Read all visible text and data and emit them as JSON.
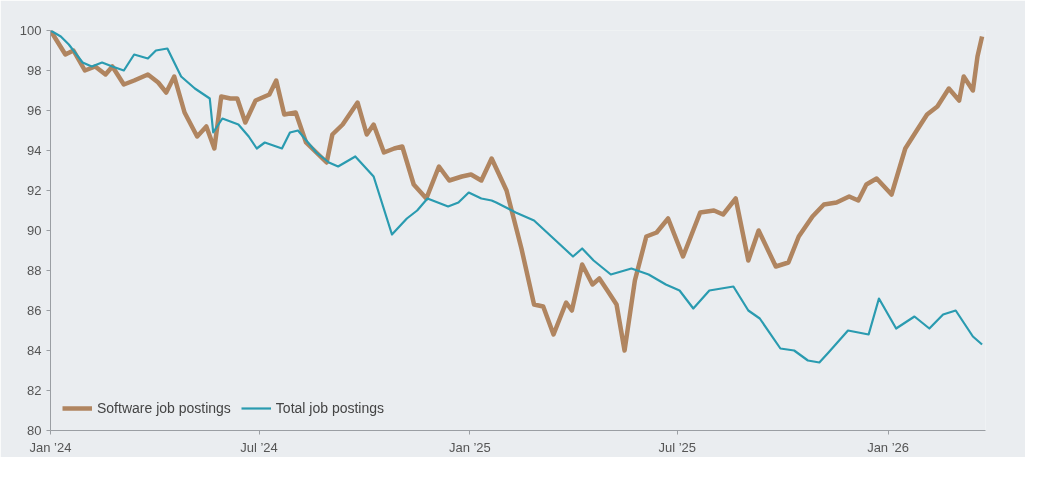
{
  "chart_data": {
    "type": "line",
    "x": [
      "2024-01-01",
      "2024-01-14",
      "2024-01-21",
      "2024-01-31",
      "2024-02-09",
      "2024-02-18",
      "2024-02-24",
      "2024-03-05",
      "2024-03-14",
      "2024-03-26",
      "2024-04-04",
      "2024-04-11",
      "2024-04-18",
      "2024-04-27",
      "2024-05-08",
      "2024-05-16",
      "2024-05-23",
      "2024-05-29",
      "2024-06-06",
      "2024-06-12",
      "2024-06-19",
      "2024-06-28",
      "2024-07-10",
      "2024-07-16",
      "2024-07-23",
      "2024-08-02",
      "2024-08-11",
      "2024-08-20",
      "2024-08-29",
      "2024-09-03",
      "2024-09-12",
      "2024-09-25",
      "2024-10-03",
      "2024-10-09",
      "2024-10-18",
      "2024-10-27",
      "2024-11-03",
      "2024-11-13",
      "2024-11-24",
      "2024-12-05",
      "2024-12-14",
      "2024-12-25",
      "2025-01-02",
      "2025-01-11",
      "2025-01-20",
      "2025-02-02",
      "2025-02-15",
      "2025-02-26",
      "2025-03-06",
      "2025-03-15",
      "2025-03-26",
      "2025-03-31",
      "2025-04-09",
      "2025-04-18",
      "2025-04-24",
      "2025-05-01",
      "2025-05-09",
      "2025-05-16",
      "2025-05-25",
      "2025-06-04",
      "2025-06-13",
      "2025-06-23",
      "2025-07-06",
      "2025-07-21",
      "2025-08-02",
      "2025-08-10",
      "2025-08-21",
      "2025-09-01",
      "2025-09-10",
      "2025-09-25",
      "2025-10-06",
      "2025-10-15",
      "2025-10-27",
      "2025-11-06",
      "2025-11-17",
      "2025-11-28",
      "2025-12-06",
      "2025-12-13",
      "2025-12-22",
      "2026-01-04",
      "2026-01-16",
      "2026-01-26",
      "2026-02-04",
      "2026-02-13",
      "2026-02-23",
      "2026-03-04",
      "2026-03-08",
      "2026-03-16",
      "2026-03-20",
      "2026-03-24"
    ],
    "series": [
      {
        "name": "Software job postings",
        "color": "#b08560",
        "values": [
          100,
          98.8,
          99.0,
          98.0,
          98.2,
          97.8,
          98.2,
          97.3,
          97.5,
          97.8,
          97.4,
          96.9,
          97.7,
          95.9,
          94.7,
          95.2,
          94.1,
          96.7,
          96.6,
          96.6,
          95.4,
          96.5,
          96.8,
          97.5,
          95.8,
          95.9,
          94.4,
          93.9,
          93.4,
          94.8,
          95.3,
          96.4,
          94.8,
          95.3,
          93.9,
          94.1,
          94.2,
          92.3,
          91.6,
          93.2,
          92.5,
          92.7,
          92.8,
          92.5,
          93.6,
          92.0,
          89.1,
          86.3,
          86.2,
          84.8,
          86.4,
          86.0,
          88.3,
          87.3,
          87.6,
          87.0,
          86.3,
          84.0,
          87.5,
          89.7,
          89.9,
          90.6,
          88.7,
          90.9,
          91.0,
          90.8,
          91.6,
          88.5,
          90.0,
          88.2,
          88.4,
          89.7,
          90.7,
          91.3,
          91.4,
          91.7,
          91.5,
          92.3,
          92.6,
          91.8,
          94.1,
          95.0,
          95.8,
          96.2,
          97.1,
          96.5,
          97.7,
          97.0,
          98.7,
          99.7
        ]
      },
      {
        "name": "Total job postings",
        "color": "#2a9bb0",
        "x": [
          "2024-01-01",
          "2024-01-10",
          "2024-01-17",
          "2024-01-29",
          "2024-02-06",
          "2024-02-15",
          "2024-02-24",
          "2024-03-05",
          "2024-03-14",
          "2024-03-26",
          "2024-04-02",
          "2024-04-12",
          "2024-04-24",
          "2024-05-06",
          "2024-05-19",
          "2024-05-22",
          "2024-05-30",
          "2024-06-13",
          "2024-06-22",
          "2024-06-29",
          "2024-07-06",
          "2024-07-21",
          "2024-07-28",
          "2024-08-04",
          "2024-08-20",
          "2024-08-31",
          "2024-09-08",
          "2024-09-23",
          "2024-10-09",
          "2024-10-25",
          "2024-11-07",
          "2024-11-16",
          "2024-11-25",
          "2024-12-13",
          "2024-12-22",
          "2024-12-31",
          "2025-01-11",
          "2025-01-20",
          "2025-01-24",
          "2025-02-10",
          "2025-02-26",
          "2025-03-15",
          "2025-04-01",
          "2025-04-09",
          "2025-04-19",
          "2025-05-04",
          "2025-05-22",
          "2025-06-06",
          "2025-06-21",
          "2025-07-03",
          "2025-07-15",
          "2025-07-29",
          "2025-08-19",
          "2025-09-01",
          "2025-09-11",
          "2025-09-29",
          "2025-10-11",
          "2025-10-23",
          "2025-11-02",
          "2025-11-10",
          "2025-11-27",
          "2025-12-15",
          "2025-12-24",
          "2026-01-08",
          "2026-01-24",
          "2026-02-06",
          "2026-02-18",
          "2026-03-01",
          "2026-03-16",
          "2026-03-24"
        ],
        "values": [
          100,
          99.7,
          99.3,
          98.4,
          98.2,
          98.4,
          98.2,
          98.0,
          98.8,
          98.6,
          99.0,
          99.1,
          97.7,
          97.1,
          96.6,
          94.9,
          95.6,
          95.3,
          94.7,
          94.1,
          94.4,
          94.1,
          94.9,
          95.0,
          93.9,
          93.4,
          93.2,
          93.7,
          92.7,
          89.8,
          90.6,
          91.0,
          91.6,
          91.2,
          91.4,
          91.9,
          91.6,
          91.5,
          91.4,
          90.9,
          90.5,
          89.6,
          88.7,
          89.1,
          88.5,
          87.8,
          88.1,
          87.8,
          87.3,
          87.0,
          86.1,
          87.0,
          87.2,
          86.0,
          85.6,
          84.1,
          84.0,
          83.5,
          83.4,
          83.9,
          85.0,
          84.8,
          86.6,
          85.1,
          85.7,
          85.1,
          85.8,
          86.0,
          84.7,
          84.3
        ]
      }
    ],
    "xlim": [
      "2024-01-01",
      "2026-03-27"
    ],
    "xticks": [
      {
        "value": "2024-01-01",
        "label": "Jan ’24"
      },
      {
        "value": "2024-07-01",
        "label": "Jul ’24"
      },
      {
        "value": "2025-01-01",
        "label": "Jan ’25"
      },
      {
        "value": "2025-07-01",
        "label": "Jul ’25"
      },
      {
        "value": "2026-01-01",
        "label": "Jan ’26"
      }
    ],
    "ylim": [
      80,
      100
    ],
    "yticks": [
      80,
      82,
      84,
      86,
      88,
      90,
      92,
      94,
      96,
      98,
      100
    ],
    "grid": false,
    "legend": "bottom left",
    "line_style": "solid",
    "marker": "none"
  }
}
